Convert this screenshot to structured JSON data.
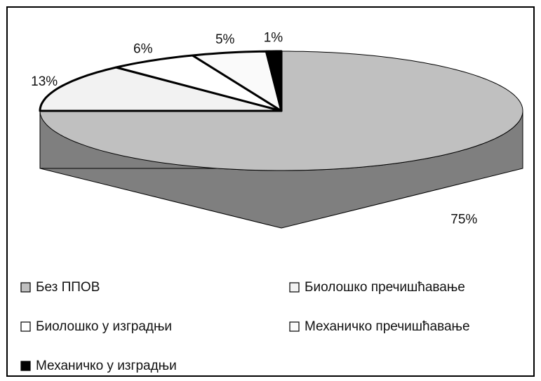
{
  "chart_data": {
    "type": "pie3d",
    "categories": [
      "Без ППОВ",
      "Биолошко пречишћавање",
      "Биолошко у изградњи",
      "Механичко пречишћавање",
      "Механичко у изградњи"
    ],
    "values": [
      75,
      13,
      6,
      5,
      1
    ],
    "value_labels": [
      "75%",
      "13%",
      "6%",
      "5%",
      "1%"
    ],
    "colors": [
      "#c0c0c0",
      "#f2f2f2",
      "#ffffff",
      "#fafafa",
      "#000000"
    ],
    "legend": "bottom"
  }
}
